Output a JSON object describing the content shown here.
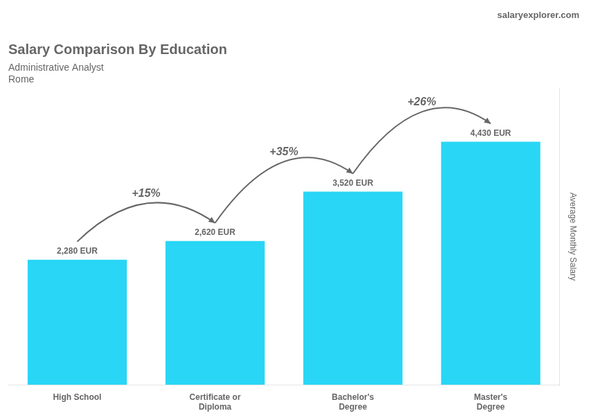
{
  "chart_data": {
    "type": "bar",
    "title": "Salary Comparison By Education",
    "subtitle": [
      "Administrative Analyst",
      "Rome"
    ],
    "website": "salaryexplorer.com",
    "ylabel": "Average Monthly Salary",
    "categories": [
      "High School",
      "Certificate or\nDiploma",
      "Bachelor's\nDegree",
      "Master's\nDegree"
    ],
    "values": [
      2280,
      2620,
      3520,
      4430
    ],
    "value_labels": [
      "2,280 EUR",
      "2,620 EUR",
      "3,520 EUR",
      "4,430 EUR"
    ],
    "data_labels": true,
    "annotations": [
      "+15%",
      "+35%",
      "+26%"
    ],
    "color": "#29d6f5",
    "ylim": [
      0,
      5400
    ],
    "grid": false,
    "tick_labels": "x"
  }
}
